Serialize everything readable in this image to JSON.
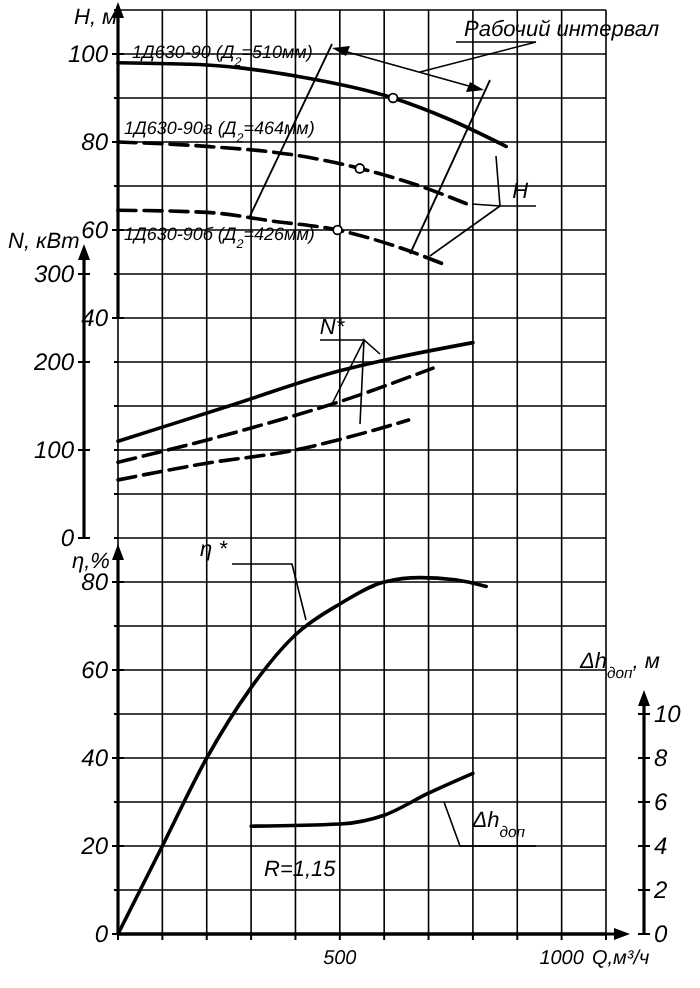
{
  "chart_data": [
    {
      "type": "line",
      "xlabel": "Q,м³/ч",
      "ylabel": "H, м",
      "y2label": "N, кВт",
      "y3label": "η,%",
      "xlim": [
        0,
        1100
      ],
      "xticks": [
        {
          "value": 0,
          "label": null
        },
        {
          "value": 100,
          "label": null
        },
        {
          "value": 200,
          "label": null
        },
        {
          "value": 300,
          "label": null
        },
        {
          "value": 400,
          "label": null
        },
        500,
        {
          "value": 600,
          "label": null
        },
        {
          "value": 700,
          "label": null
        },
        {
          "value": 800,
          "label": null
        },
        {
          "value": 900,
          "label": null
        },
        1000,
        {
          "value": 1100,
          "label": null
        }
      ],
      "ylim": [
        -100,
        110
      ],
      "yticks": [
        {
          "value": -90,
          "label": null
        },
        {
          "value": -80,
          "label": null
        },
        {
          "value": -70,
          "label": null
        },
        {
          "value": -60,
          "label": null
        },
        {
          "value": -50,
          "label": null
        },
        {
          "value": -40,
          "label": null
        },
        {
          "value": -30,
          "label": null
        },
        {
          "value": -20,
          "label": null
        },
        {
          "value": -10,
          "label": null
        },
        {
          "value": 0,
          "label": null
        },
        {
          "value": 10,
          "label": null
        },
        {
          "value": 20,
          "label": null
        },
        {
          "value": 30,
          "label": null
        },
        40,
        {
          "value": 50,
          "label": null
        },
        60,
        {
          "value": 70,
          "label": null
        },
        80,
        {
          "value": 90,
          "label": null
        },
        100,
        {
          "value": 110,
          "label": null
        }
      ],
      "y2lim": [
        -450,
        600
      ],
      "y2ticks": [
        0,
        100,
        200,
        300
      ],
      "y3lim": [
        0,
        210
      ],
      "y3ticks": [
        0,
        20,
        40,
        60,
        80
      ],
      "grid": true,
      "legend": "top left",
      "series": [
        {
          "name": "1Д630-90 (Д$_{2}$=510мм)",
          "color": "#000000",
          "line_style": "solid",
          "x": [
            0,
            200,
            400,
            620,
            750,
            875
          ],
          "values": [
            98,
            97.5,
            95,
            90,
            85,
            79
          ]
        },
        {
          "name": "1Д630-90а (Д$_{2}$=464мм)",
          "color": "#000000",
          "line_style": "dashed",
          "x": [
            0,
            200,
            400,
            545,
            680,
            785
          ],
          "values": [
            80,
            79,
            77,
            74,
            70,
            66
          ]
        },
        {
          "name": "1Д630-90б (Д$_{2}$=426мм)",
          "color": "#000000",
          "line_style": "dashed",
          "x": [
            0,
            200,
            350,
            495,
            620,
            740
          ],
          "values": [
            64.5,
            64,
            62,
            60,
            56.5,
            52
          ]
        },
        {
          "type": "scatter",
          "color": "#000000",
          "marker": "circle",
          "x": [
            620,
            545,
            495
          ],
          "values": [
            90,
            74,
            60
          ]
        },
        {
          "axis": "y2",
          "color": "#000000",
          "line_style": "solid",
          "x": [
            0,
            250,
            500,
            600,
            800
          ],
          "values": [
            110,
            150,
            190,
            202,
            222
          ]
        },
        {
          "axis": "y2",
          "color": "#000000",
          "line_style": "dashed",
          "x": [
            0,
            300,
            500,
            710
          ],
          "values": [
            86,
            125,
            155,
            193
          ]
        },
        {
          "axis": "y2",
          "color": "#000000",
          "line_style": "dashed",
          "x": [
            0,
            200,
            400,
            500,
            655
          ],
          "values": [
            66,
            85,
            100,
            112,
            134
          ]
        },
        {
          "axis": "y3",
          "color": "#000000",
          "line_style": "solid",
          "x": [
            0,
            100,
            200,
            300,
            400,
            500,
            600,
            680,
            760,
            830
          ],
          "values": [
            0,
            20,
            40,
            56,
            68,
            75,
            80,
            81,
            80.5,
            79
          ]
        }
      ],
      "annotations": [
        "Рабочий интервал",
        {
          "text": "H",
          "x": 785,
          "y": 66
        },
        {
          "text": "N*",
          "x": 482,
          "y": 20.5
        },
        {
          "text": "η *",
          "x": 424,
          "y": -28.6
        }
      ]
    },
    {
      "type": "line",
      "ylabel": "Δh$_{доп}$, м",
      "xlim": [
        0,
        1100
      ],
      "ylim": [
        0,
        10
      ],
      "yticks": [
        0,
        2,
        4,
        6,
        8,
        10
      ],
      "tick_labels": "y",
      "series": [
        {
          "color": "#000000",
          "line_style": "solid",
          "x": [
            300,
            500,
            600,
            700,
            800
          ],
          "values": [
            4.9,
            5,
            5.4,
            6.4,
            7.3
          ]
        }
      ],
      "annotations": [
        {
          "text": "Δh$_{доп}$",
          "x": 700,
          "y": 6.4
        },
        "R=1,15"
      ]
    }
  ]
}
